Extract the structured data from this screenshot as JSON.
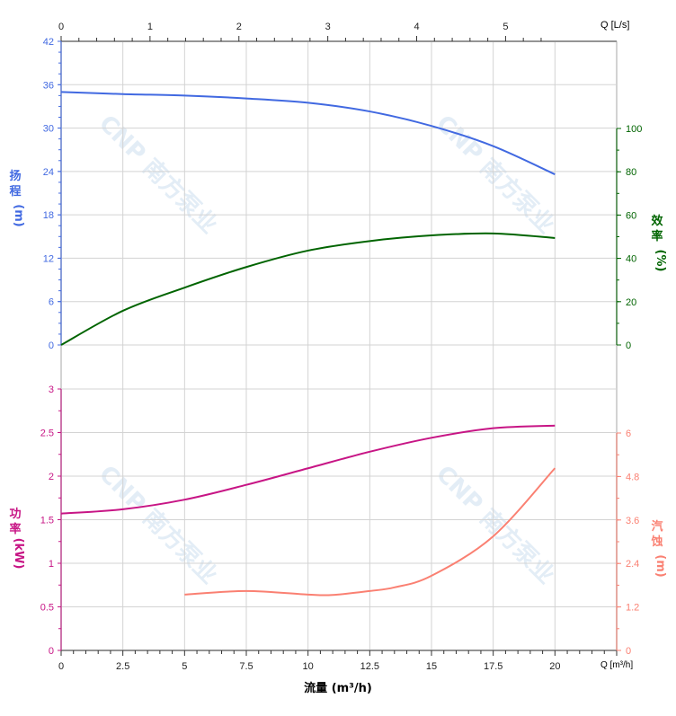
{
  "chart_data": [
    {
      "type": "line",
      "panel": "upper",
      "x_axis_bottom": {
        "label": "流量 (m³/h)",
        "unit_label": "Q [m³/h]",
        "range": [
          0,
          22.5
        ],
        "ticks": [
          "0",
          "2.5",
          "5",
          "7.5",
          "10",
          "12.5",
          "15",
          "17.5",
          "20"
        ]
      },
      "x_axis_top": {
        "unit_label": "Q [L/s]",
        "range": [
          0,
          6.25
        ],
        "ticks": [
          "0",
          "1",
          "2",
          "3",
          "4",
          "5"
        ]
      },
      "y_left": {
        "label": "扬程(m)",
        "range": [
          0,
          42
        ],
        "ticks": [
          "0",
          "6",
          "12",
          "18",
          "24",
          "30",
          "36",
          "42"
        ],
        "color": "#4169e1"
      },
      "y_right": {
        "label": "效率(%)",
        "range": [
          0,
          100
        ],
        "ticks": [
          "0",
          "20",
          "40",
          "60",
          "80",
          "100"
        ],
        "color": "#006400"
      },
      "grid": true,
      "series": [
        {
          "name": "扬程",
          "axis": "left",
          "color": "#4169e1",
          "x": [
            0,
            2.5,
            5,
            7.5,
            10,
            12.5,
            15,
            17.5,
            20
          ],
          "y": [
            35.0,
            34.7,
            34.5,
            34.1,
            33.5,
            32.3,
            30.3,
            27.5,
            23.6
          ]
        },
        {
          "name": "效率",
          "axis": "right",
          "color": "#006400",
          "x": [
            0,
            2.5,
            5,
            7.5,
            10,
            12.5,
            15,
            17.5,
            20
          ],
          "y": [
            0,
            15.8,
            26.5,
            36,
            43.6,
            48,
            50.6,
            51.5,
            49.4
          ]
        }
      ]
    },
    {
      "type": "line",
      "panel": "lower",
      "y_left": {
        "label": "功率(kW)",
        "range": [
          0,
          3
        ],
        "ticks": [
          "0",
          "0.5",
          "1",
          "1.5",
          "2",
          "2.5",
          "3"
        ],
        "color": "#c71585"
      },
      "y_right": {
        "label": "汽蚀(m)",
        "range": [
          0,
          7.2
        ],
        "ticks": [
          "0",
          "1.2",
          "2.4",
          "3.6",
          "4.8",
          "6"
        ],
        "color": "#fa8072"
      },
      "grid": true,
      "series": [
        {
          "name": "功率",
          "axis": "left",
          "color": "#c71585",
          "x": [
            0,
            2.5,
            5,
            7.5,
            10,
            12.5,
            15,
            17.5,
            20
          ],
          "y": [
            1.57,
            1.62,
            1.73,
            1.9,
            2.09,
            2.28,
            2.44,
            2.55,
            2.58
          ]
        },
        {
          "name": "汽蚀",
          "axis": "right",
          "color": "#fa8072",
          "x": [
            5,
            7.5,
            10,
            11,
            12.5,
            13.5,
            15,
            17.5,
            20
          ],
          "y": [
            1.54,
            1.64,
            1.54,
            1.53,
            1.64,
            1.74,
            2.06,
            3.15,
            5.03
          ]
        }
      ]
    }
  ],
  "labels": {
    "head": [
      "扬",
      "程",
      "(m)"
    ],
    "eff": [
      "效",
      "率",
      "(%)"
    ],
    "power": [
      "功",
      "率",
      "(kW)"
    ],
    "npsh": [
      "汽",
      "蚀",
      "(m)"
    ],
    "x_title": "流量 (m³/h)",
    "x_unit_bottom": "Q [m³/h]",
    "x_unit_top": "Q [L/s]"
  },
  "watermark": "CNP 南方泵业"
}
